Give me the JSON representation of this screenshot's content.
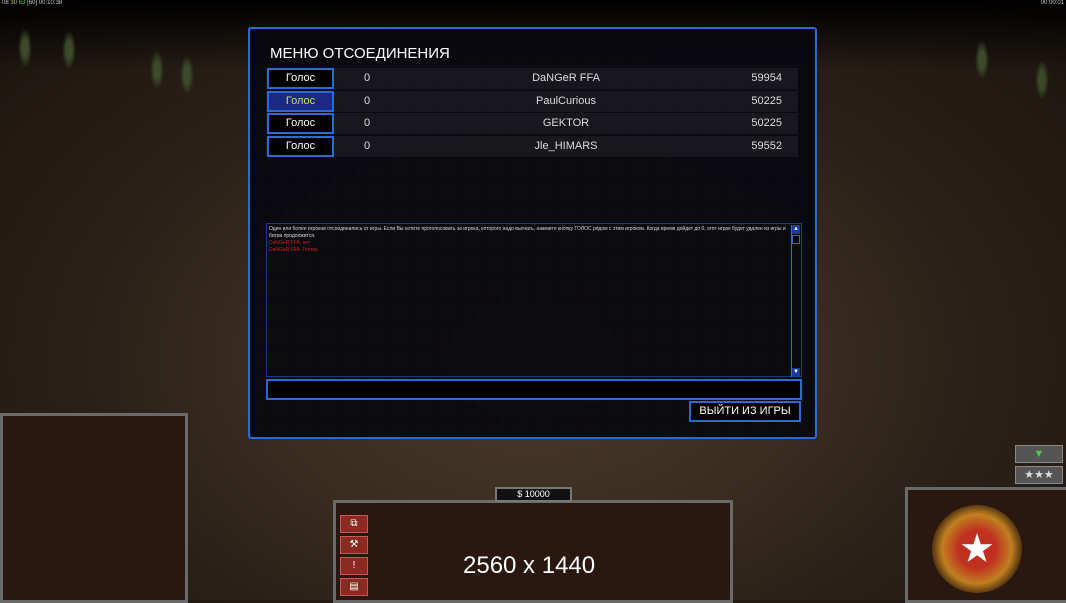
{
  "hud": {
    "fps_a": "08",
    "fps_b": "30",
    "fps_c": "63",
    "fps_d": "[60]",
    "time": "00:10:38",
    "clock_right": "00:00:01"
  },
  "dialog": {
    "title": "МЕНЮ ОТСОЕДИНЕНИЯ",
    "players": [
      {
        "vote_label": "Голос",
        "votes": "0",
        "name": "DaNGeR FFA",
        "ping": "59954",
        "selected": false
      },
      {
        "vote_label": "Голос",
        "votes": "0",
        "name": "PaulCurious",
        "ping": "50225",
        "selected": true
      },
      {
        "vote_label": "Голос",
        "votes": "0",
        "name": "GEKTOR",
        "ping": "50225",
        "selected": false
      },
      {
        "vote_label": "Голос",
        "votes": "0",
        "name": "Jle_HIMARS",
        "ping": "59552",
        "selected": false
      }
    ],
    "message": "Один или более игроков отсоединились от игры. Если Вы хотите проголосовать за игрока, которого надо выгнать, нажмите кнопку ГОЛОС рядом с этим игроком. Когда время дойдет до 0, этот игрок будет удален из игры и битва продолжится.",
    "chat_lines": [
      "DaNGeR FFA: нет",
      "DaNGeR FFA: Гектор"
    ],
    "chat_input": "",
    "quit_label": "ВЫЙТИ ИЗ ИГРЫ"
  },
  "control_bar": {
    "money": "$ 10000",
    "resolution_overlay": "2560 x 1440"
  },
  "colors": {
    "accent": "#2a6ad8",
    "chat_red": "#d02020",
    "selected_vote_text": "#cfe05a"
  }
}
